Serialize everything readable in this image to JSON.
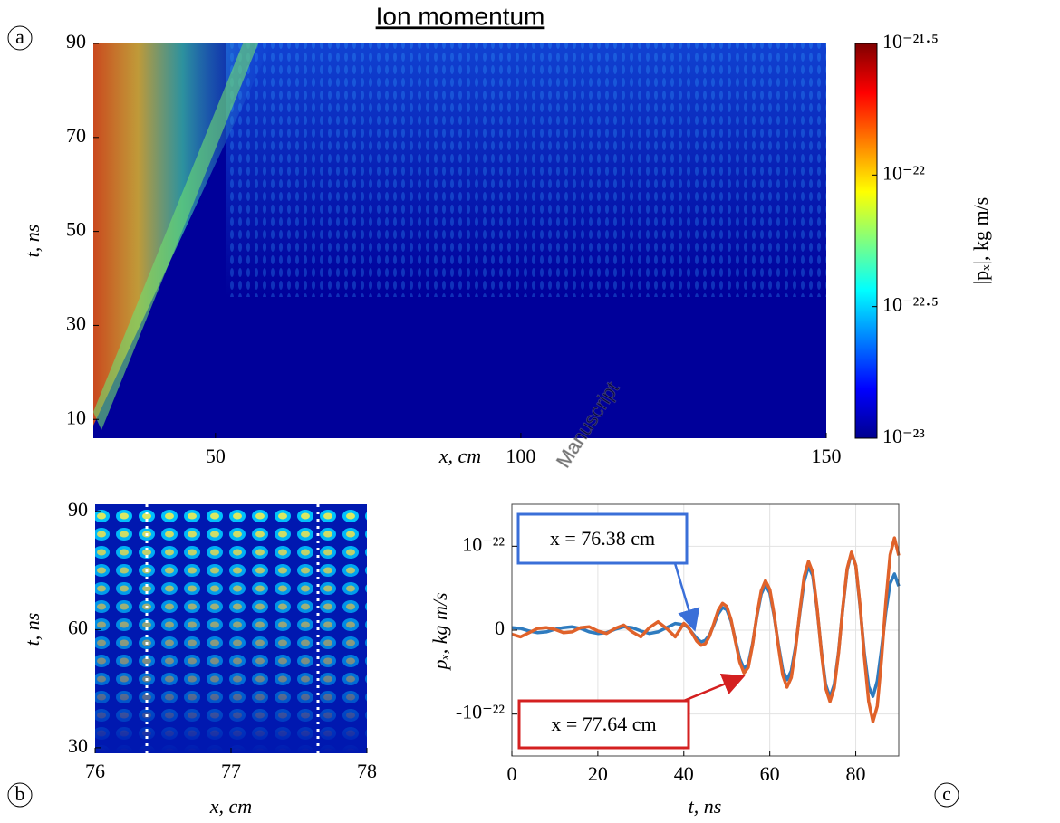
{
  "watermark": "Manuscript",
  "chart_data": [
    {
      "type": "heatmap",
      "panel_label": "a",
      "title": "Ion momentum",
      "xlabel": "x, cm",
      "ylabel": "t, ns",
      "xlim": [
        30,
        150
      ],
      "xticks": [
        50,
        100,
        150
      ],
      "ylim": [
        6,
        90
      ],
      "yticks": [
        10,
        30,
        50,
        70,
        90
      ],
      "colorbar": {
        "label": "|pₓ|, kg m/s",
        "log": true,
        "colormap": "jet",
        "clim": [
          1e-23,
          3.162e-22
        ],
        "cticks": [
          {
            "value": 1e-23,
            "label": "10⁻²³"
          },
          {
            "value": 3.162e-23,
            "label": "10⁻²²·⁵"
          },
          {
            "value": 1e-22,
            "label": "10⁻²²"
          },
          {
            "value": 3.162e-22,
            "label": "10⁻²¹·⁵"
          }
        ]
      }
    },
    {
      "type": "heatmap",
      "panel_label": "b",
      "xlabel": "x, cm",
      "ylabel": "t, ns",
      "xlim": [
        76,
        78
      ],
      "xticks": [
        76,
        77,
        78
      ],
      "ylim": [
        28.6,
        91.8
      ],
      "yticks": [
        30,
        60,
        90
      ],
      "markers_x": [
        76.38,
        77.64
      ],
      "marker_color": "#ffffff"
    },
    {
      "type": "line",
      "panel_label": "c",
      "xlabel": "t, ns",
      "ylabel": "pₓ, kg m/s",
      "grid": true,
      "xlim": [
        0,
        90
      ],
      "xticks": [
        0,
        20,
        40,
        60,
        80
      ],
      "ylim": [
        -1.5e-22,
        1.5e-22
      ],
      "yticks": [
        {
          "value": -1e-22,
          "label": "-10⁻²²"
        },
        0,
        {
          "value": 1e-22,
          "label": "10⁻²²"
        }
      ],
      "x": [
        0,
        2,
        4,
        6,
        8,
        10,
        12,
        14,
        16,
        18,
        20,
        22,
        24,
        26,
        28,
        30,
        32,
        34,
        36,
        38,
        40,
        41,
        42,
        43,
        44,
        45,
        46,
        47,
        48,
        49,
        50,
        51,
        52,
        53,
        54,
        55,
        56,
        57,
        58,
        59,
        60,
        61,
        62,
        63,
        64,
        65,
        66,
        67,
        68,
        69,
        70,
        71,
        72,
        73,
        74,
        75,
        76,
        77,
        78,
        79,
        80,
        81,
        82,
        83,
        84,
        85,
        86,
        87,
        88,
        89,
        90
      ],
      "series": [
        {
          "color": "#2e7bbf",
          "values": [
            3e-24,
            2e-24,
            -1e-24,
            -3e-24,
            -2e-24,
            1e-24,
            3e-24,
            4e-24,
            2e-24,
            -2e-24,
            -4e-24,
            -3e-24,
            1e-24,
            4e-24,
            3e-24,
            -1e-24,
            -4e-24,
            -2e-24,
            3e-24,
            8e-24,
            6.5e-24,
            3.1e-24,
            -3.4e-24,
            -9.7e-24,
            -1.4e-23,
            -1.21e-23,
            -5.6e-24,
            6.5e-24,
            1.94e-23,
            2.7e-23,
            2.43e-23,
            1.05e-23,
            -1.17e-23,
            -3.4e-23,
            -4.6e-23,
            -4.05e-23,
            -1.58e-23,
            1.61e-23,
            4.29e-23,
            5.4e-23,
            4.45e-23,
            1.73e-23,
            -1.76e-23,
            -4.69e-23,
            -5.9e-23,
            -4.85e-23,
            -1.98e-23,
            2.1e-23,
            5.82e-23,
            7.6e-23,
            6.47e-23,
            2.47e-23,
            -2.47e-23,
            -6.47e-23,
            -8e-23,
            -6.47e-23,
            -2.56e-23,
            2.66e-23,
            7.2e-23,
            9.2e-23,
            7.69e-23,
            2.81e-23,
            -2.69e-23,
            -6.71e-23,
            -7.9e-23,
            -6.07e-23,
            -2.26e-23,
            2.19e-23,
            5.58e-23,
            6.7e-23,
            5.26e-23
          ]
        },
        {
          "color": "#e0622a",
          "values": [
            -5e-24,
            -8e-24,
            -3e-24,
            2e-24,
            3e-24,
            1e-24,
            -3e-24,
            -2e-24,
            3e-24,
            4e-24,
            -1e-24,
            -4e-24,
            2e-24,
            6e-24,
            -2e-24,
            -8e-24,
            3e-24,
            1e-23,
            2e-24,
            -8e-24,
            8.1e-24,
            3.7e-24,
            -4.3e-24,
            -1.29e-23,
            -1.8e-23,
            -1.62e-23,
            -7.1e-24,
            8e-24,
            2.35e-23,
            3.2e-23,
            2.83e-23,
            1.21e-23,
            -1.33e-23,
            -3.8e-23,
            -5.1e-23,
            -4.45e-23,
            -1.73e-23,
            1.76e-23,
            4.69e-23,
            5.9e-23,
            4.85e-23,
            1.92e-23,
            -1.98e-23,
            -5.34e-23,
            -6.8e-23,
            -5.66e-23,
            -2.26e-23,
            2.35e-23,
            6.39e-23,
            8.2e-23,
            6.88e-23,
            2.63e-23,
            -2.63e-23,
            -6.88e-23,
            -8.5e-23,
            -6.88e-23,
            -2.69e-23,
            2.75e-23,
            7.36e-23,
            9.3e-23,
            7.69e-23,
            3.03e-23,
            -3.15e-23,
            -8.49e-23,
            -1.09e-22,
            -9.06e-23,
            -3.46e-23,
            3.43e-23,
            8.98e-23,
            1.1e-22,
            8.9e-23
          ]
        }
      ],
      "annotations": [
        {
          "text": "x = 76.38 cm",
          "color": "#3a6fd8"
        },
        {
          "text": "x = 77.64 cm",
          "color": "#d42020"
        }
      ]
    }
  ]
}
